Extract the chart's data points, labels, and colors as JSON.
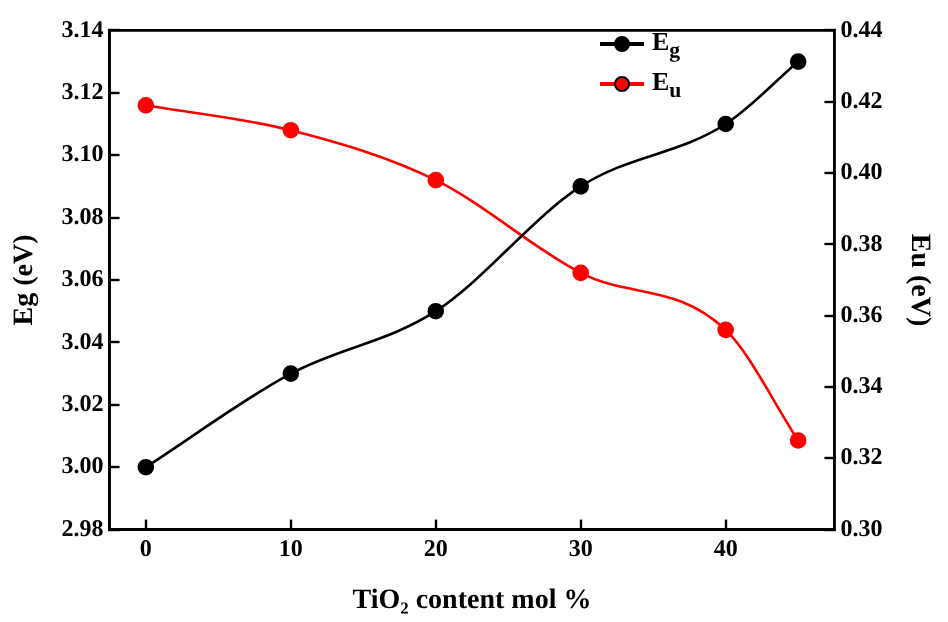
{
  "chart_data": {
    "type": "line",
    "x": [
      0,
      10,
      20,
      30,
      40,
      45
    ],
    "xlabel": "TiO₂ content mol %",
    "ylabel": "Eg (eV)",
    "y2label": "Eu (eV)",
    "xlim": [
      -2.5,
      47.5
    ],
    "xticks": [
      0,
      10,
      20,
      30,
      40
    ],
    "ylim": [
      2.98,
      3.14
    ],
    "yticks": [
      2.98,
      {
        "value": 3.0,
        "label": "3.00"
      },
      3.02,
      3.04,
      3.06,
      3.08,
      {
        "value": 3.1,
        "label": "3.10"
      },
      3.12,
      3.14
    ],
    "y2lim": [
      0.3,
      0.44
    ],
    "y2ticks": [
      {
        "value": 0.3,
        "label": "0.30"
      },
      0.32,
      0.34,
      0.36,
      0.38,
      {
        "value": 0.4,
        "label": "0.40"
      },
      0.42,
      0.44
    ],
    "series": [
      {
        "name": "E$_{g}$",
        "color": "#000000",
        "values": [
          3.0,
          3.03,
          3.05,
          3.09,
          3.11,
          3.13
        ]
      },
      {
        "name": "E$_{u}$",
        "color": "#ff0000",
        "axis": "y2",
        "values": [
          0.419,
          0.412,
          0.398,
          0.372,
          0.356,
          0.325
        ]
      }
    ],
    "legend": "top right",
    "marker": "circle",
    "line_style": "solid",
    "grid": false
  }
}
